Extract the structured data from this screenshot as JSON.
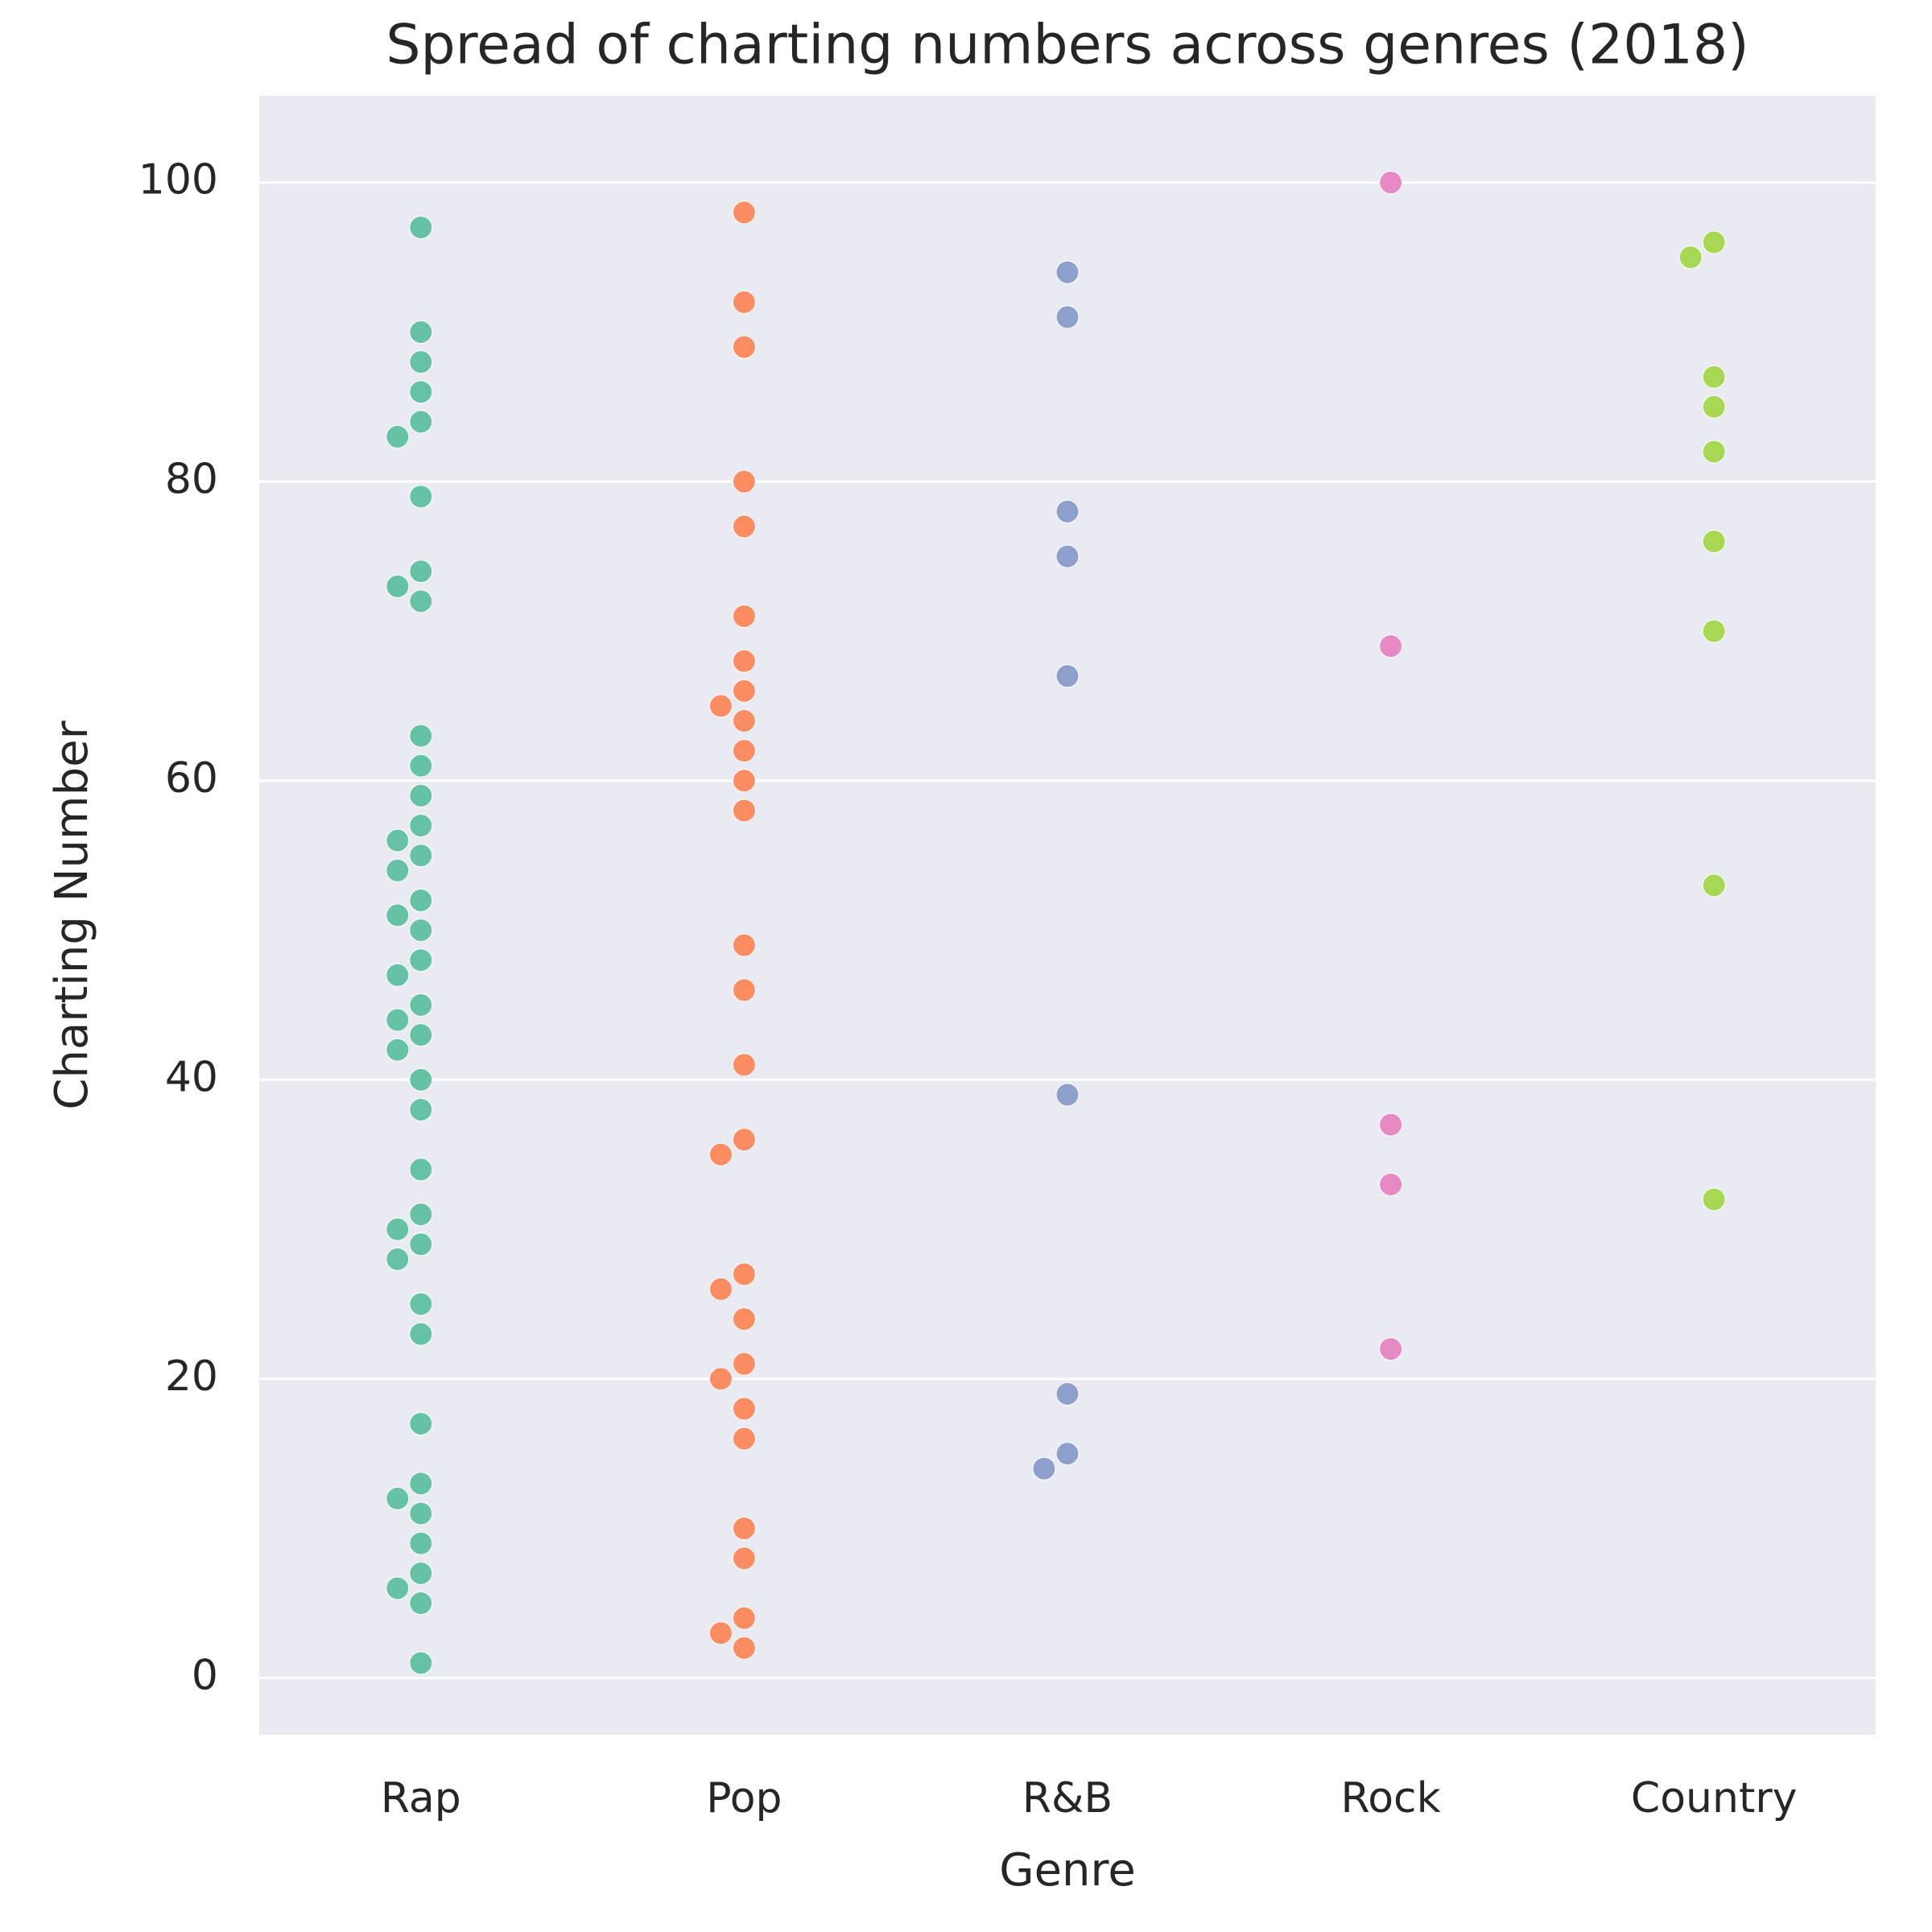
{
  "chart_data": {
    "type": "swarm",
    "title": "Spread of charting numbers across genres (2018)",
    "x_label": "Genre",
    "y_label": "Charting Number",
    "ylim": [
      -3.8,
      105.8
    ],
    "yticks": [
      0,
      20,
      40,
      60,
      80,
      100
    ],
    "grid": true,
    "series": [
      {
        "name": "Rap",
        "color": "#66c2a5",
        "values": [
          97,
          90,
          88,
          86,
          84,
          83,
          79,
          74,
          73,
          72,
          63,
          61,
          59,
          57,
          56,
          55,
          54,
          52,
          51,
          50,
          48,
          47,
          45,
          44,
          43,
          42,
          40,
          38,
          34,
          31,
          30,
          29,
          28,
          25,
          23,
          17,
          13,
          12,
          11,
          9,
          7,
          6,
          5,
          1
        ]
      },
      {
        "name": "Pop",
        "color": "#fc8d62",
        "values": [
          98,
          92,
          89,
          80,
          77,
          71,
          68,
          66,
          65,
          64,
          62,
          60,
          58,
          49,
          46,
          41,
          36,
          35,
          27,
          26,
          24,
          21,
          20,
          18,
          16,
          10,
          8,
          4,
          3,
          2
        ]
      },
      {
        "name": "R&B",
        "color": "#8da0cb",
        "values": [
          94,
          91,
          78,
          75,
          67,
          39,
          19,
          15,
          14
        ]
      },
      {
        "name": "Rock",
        "color": "#e78ac3",
        "values": [
          100,
          69,
          37,
          33,
          22
        ]
      },
      {
        "name": "Country",
        "color": "#a6d854",
        "values": [
          96,
          95,
          87,
          85,
          82,
          76,
          70,
          53,
          32
        ]
      }
    ]
  }
}
